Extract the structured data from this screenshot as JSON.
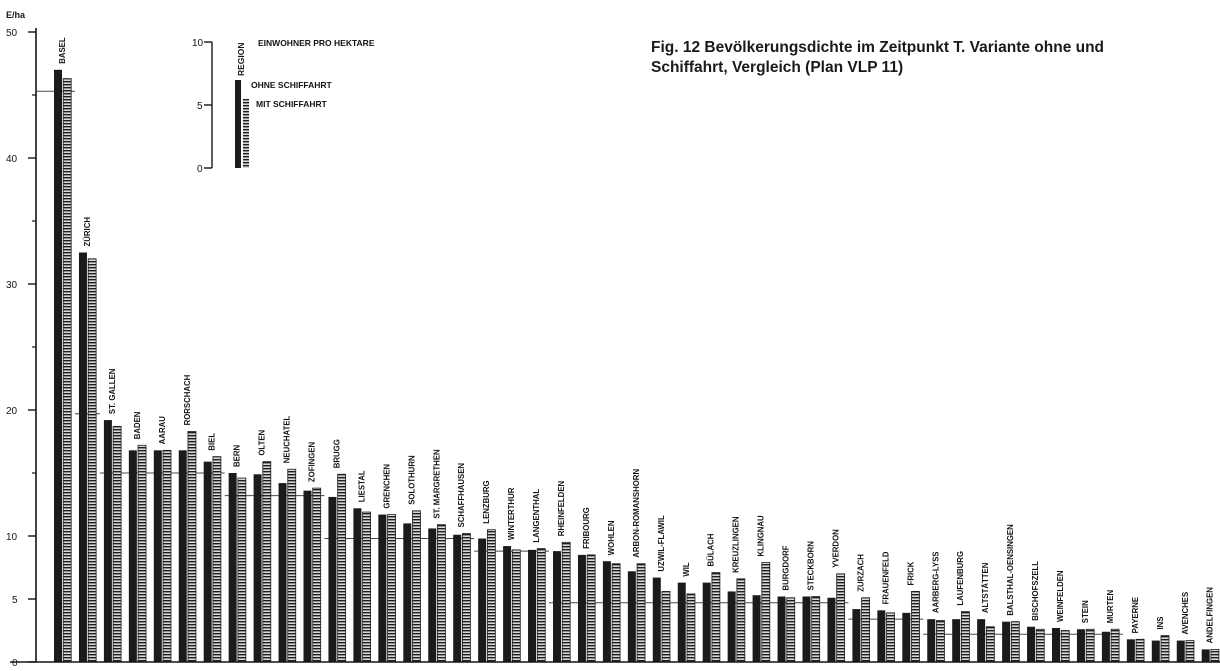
{
  "figure": {
    "caption_line1": "Fig. 12  Bevölkerungsdichte im Zeitpunkt T. Variante ohne und",
    "caption_line2": "Schiffahrt, Vergleich (Plan VLP 11)"
  },
  "legend": {
    "title": "EINWOHNER PRO HEKTARE",
    "region_label": "REGION",
    "ticks": [
      "10",
      "5",
      "0"
    ],
    "series_without": "OHNE SCHIFFAHRT",
    "series_with": "MIT SCHIFFAHRT"
  },
  "colors": {
    "without": "#1b1b1b",
    "with": "#cfcfcf",
    "ink": "#151515"
  },
  "chart_data": {
    "type": "bar",
    "ylabel": "E/ha",
    "ylim": [
      0,
      50
    ],
    "yticks": [
      0,
      5,
      10,
      20,
      30,
      40,
      50
    ],
    "categories": [
      "BASEL",
      "ZÜRICH",
      "ST. GALLEN",
      "BADEN",
      "AARAU",
      "RORSCHACH",
      "BIEL",
      "BERN",
      "OLTEN",
      "NEUCHATEL",
      "ZOFINGEN",
      "BRUGG",
      "LIESTAL",
      "GRENCHEN",
      "SOLOTHURN",
      "ST. MARGRETHEN",
      "SCHAFFHAUSEN",
      "LENZBURG",
      "WINTERTHUR",
      "LANGENTHAL",
      "RHEINFELDEN",
      "FRIBOURG",
      "WOHLEN",
      "ARBON-ROMANSHORN",
      "UZWIL-FLAWIL",
      "WIL",
      "BÜLACH",
      "KREUZLINGEN",
      "KLINGNAU",
      "BURGDORF",
      "STECKBORN",
      "YVERDON",
      "ZURZACH",
      "FRAUENFELD",
      "FRICK",
      "AARBERG-LYSS",
      "LAUFENBURG",
      "ALTSTÄTTEN",
      "BALSTHAL-OENSINGEN",
      "BISCHOFSZELL",
      "WEINFELDEN",
      "STEIN",
      "MURTEN",
      "PAYERNE",
      "INS",
      "AVENCHES",
      "ANDELFINGEN"
    ],
    "series": [
      {
        "name": "OHNE SCHIFFAHRT",
        "values": [
          47.0,
          32.5,
          19.2,
          16.8,
          16.8,
          16.8,
          15.9,
          15.0,
          14.9,
          14.2,
          13.6,
          13.1,
          12.2,
          11.7,
          11.0,
          10.6,
          10.1,
          9.8,
          9.2,
          8.9,
          8.8,
          8.5,
          8.0,
          7.2,
          6.7,
          6.3,
          6.3,
          5.6,
          5.3,
          5.2,
          5.2,
          5.1,
          4.2,
          4.1,
          3.9,
          3.4,
          3.4,
          3.4,
          3.2,
          2.8,
          2.7,
          2.6,
          2.4,
          1.8,
          1.7,
          1.7,
          1.0
        ]
      },
      {
        "name": "MIT SCHIFFAHRT",
        "values": [
          46.3,
          32.0,
          18.7,
          17.2,
          16.8,
          18.3,
          16.3,
          14.6,
          15.9,
          15.3,
          13.8,
          14.9,
          11.9,
          11.7,
          12.0,
          10.9,
          10.2,
          10.5,
          8.9,
          9.0,
          9.5,
          8.5,
          7.8,
          7.8,
          5.6,
          5.4,
          7.1,
          6.6,
          7.9,
          5.1,
          5.2,
          7.0,
          5.1,
          3.9,
          5.6,
          3.3,
          4.0,
          2.8,
          3.2,
          2.6,
          2.5,
          2.6,
          2.6,
          1.8,
          2.1,
          1.7,
          1.0
        ]
      }
    ],
    "step_levels": [
      45.3,
      34.8,
      19.7,
      15.0,
      13.2,
      9.8,
      8.8,
      4.7,
      3.4,
      2.2
    ]
  }
}
